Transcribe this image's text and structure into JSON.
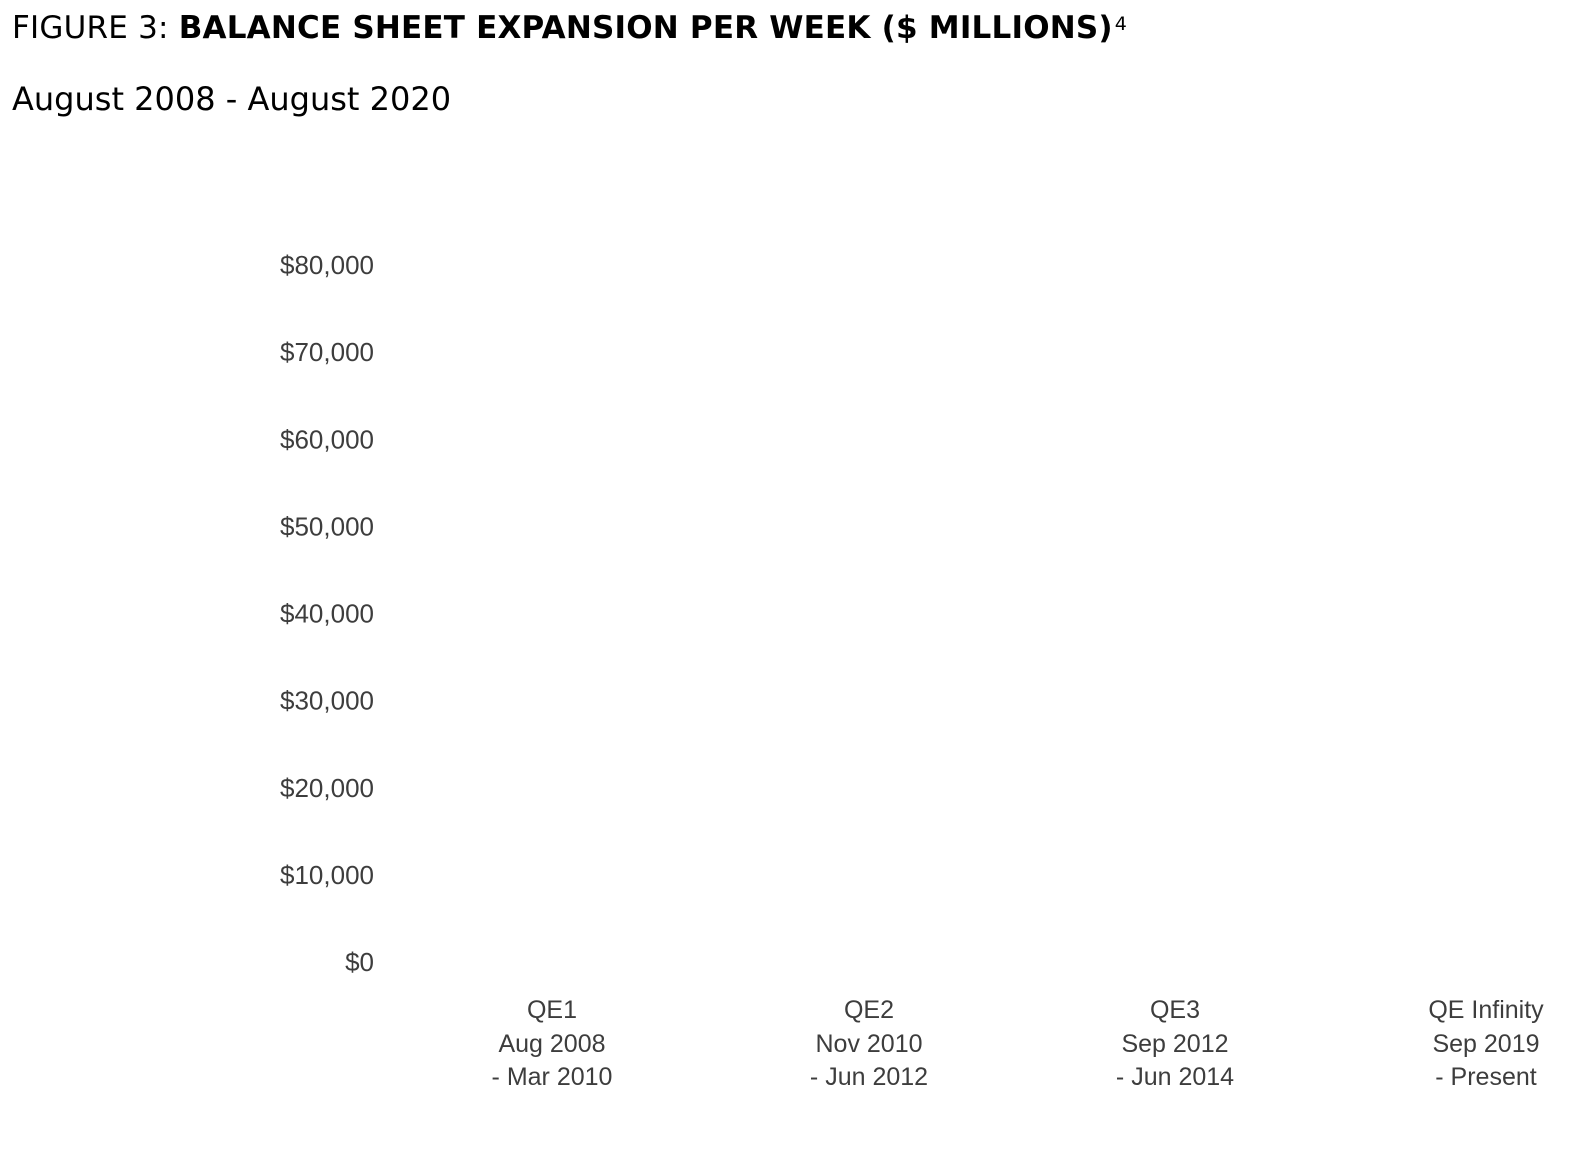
{
  "figure": {
    "prefix": "FIGURE 3: ",
    "title": "BALANCE SHEET EXPANSION PER WEEK ($ MILLIONS)",
    "footnote": "4",
    "subtitle": "August 2008 - August 2020"
  },
  "chart_data": {
    "type": "bar",
    "title": "BALANCE SHEET EXPANSION PER WEEK ($ MILLIONS)",
    "subtitle": "August 2008 - August 2020",
    "xlabel": "",
    "ylabel": "",
    "ylim": [
      0,
      80000
    ],
    "yticks": [
      0,
      10000,
      20000,
      30000,
      40000,
      50000,
      60000,
      70000,
      80000
    ],
    "ytick_labels": [
      "$0",
      "$10,000",
      "$20,000",
      "$30,000",
      "$40,000",
      "$50,000",
      "$60,000",
      "$70,000",
      "$80,000"
    ],
    "categories": [
      [
        "QE1",
        "Aug 2008",
        "- Mar 2010"
      ],
      [
        "QE2",
        "Nov 2010",
        "- Jun 2012"
      ],
      [
        "QE3",
        "Sep 2012",
        "- Jun 2014"
      ],
      [
        "QE Infinity",
        "Sep 2019",
        "- Present"
      ]
    ],
    "values": [
      null,
      null,
      null,
      null
    ],
    "grid": false,
    "legend": "none",
    "colors": {
      "tick_text": "#3d3d3d",
      "bar": "#2b5f8a"
    }
  }
}
